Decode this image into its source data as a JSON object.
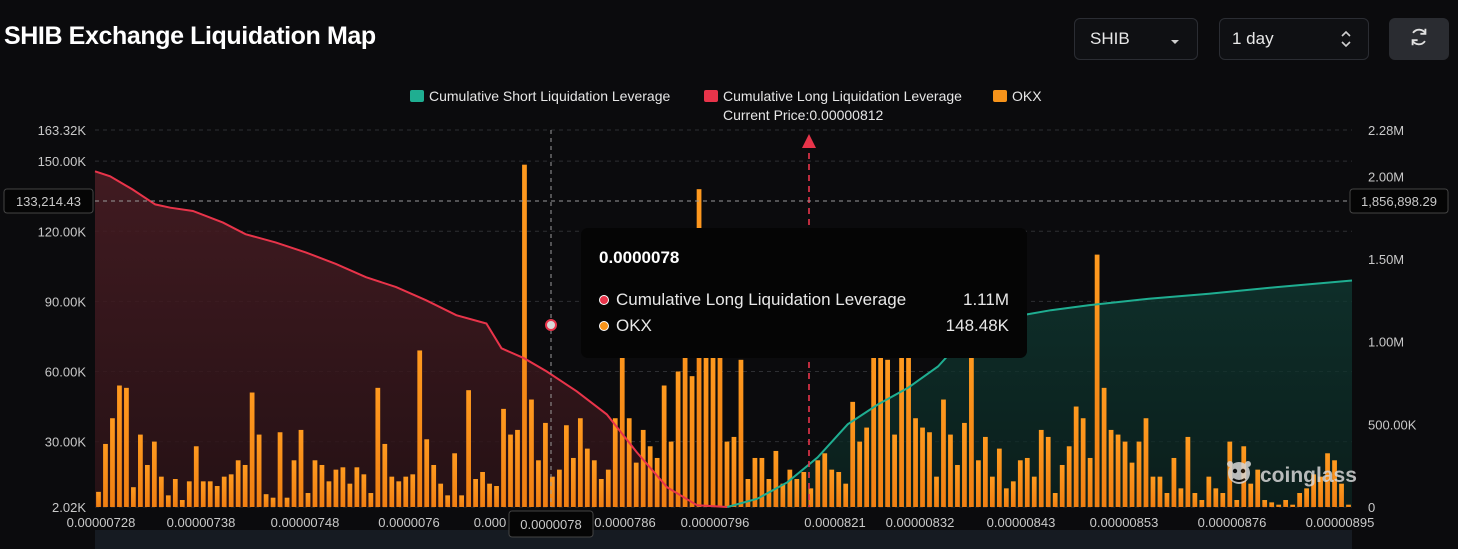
{
  "header": {
    "title": "SHIB Exchange Liquidation Map",
    "symbol": "SHIB",
    "timeframe": "1 day"
  },
  "chart_data": {
    "type": "bar",
    "legend": [
      {
        "name": "Cumulative Short Liquidation Leverage",
        "color": "#1fae91"
      },
      {
        "name": "Cumulative Long Liquidation Leverage",
        "color": "#e8344a"
      },
      {
        "name": "OKX",
        "color": "#f7931a"
      }
    ],
    "current_price_label": "Current Price:0.00000812",
    "current_price": 8.12e-06,
    "left_axis": {
      "ticks": [
        "163.32K",
        "150.00K",
        "120.00K",
        "90.00K",
        "60.00K",
        "30.00K",
        "2.02K"
      ],
      "min": 2020,
      "max": 163320
    },
    "right_axis": {
      "ticks": [
        "2.28M",
        "2.00M",
        "1.50M",
        "1.00M",
        "500.00K",
        "0"
      ],
      "min": 0,
      "max": 2280000
    },
    "x_ticks": [
      "0.00000728",
      "0.00000738",
      "0.00000748",
      "0.0000076",
      "0.000",
      "0.0000786",
      "0.00000796",
      "0.0000821",
      "0.00000832",
      "0.00000843",
      "0.00000853",
      "0.00000876",
      "0.00000895"
    ],
    "crosshair": {
      "left_label": "133,214.43",
      "right_label": "1,856,898.29",
      "x_label": "0.0000078"
    },
    "okx_values": [
      8500,
      29000,
      40000,
      54000,
      53000,
      10500,
      33000,
      20000,
      30000,
      15000,
      7000,
      14000,
      5000,
      13000,
      28000,
      13000,
      13000,
      11000,
      15000,
      16000,
      22000,
      20000,
      51000,
      33000,
      7500,
      6000,
      34000,
      6000,
      22000,
      35000,
      8000,
      22000,
      20000,
      13000,
      18000,
      19000,
      12000,
      19000,
      16000,
      8000,
      53000,
      29000,
      15000,
      13000,
      15000,
      16000,
      69000,
      31000,
      20000,
      12000,
      7000,
      25000,
      7000,
      52000,
      14000,
      17000,
      12000,
      11000,
      44000,
      33000,
      35000,
      148480,
      48000,
      22000,
      38000,
      15000,
      18000,
      37000,
      23000,
      40000,
      27000,
      22000,
      14000,
      18000,
      40000,
      80000,
      40000,
      21000,
      35000,
      28000,
      23000,
      54000,
      30000,
      60000,
      86000,
      58000,
      138000,
      68000,
      68000,
      95000,
      30000,
      32000,
      65000,
      14000,
      23000,
      23000,
      14000,
      26000,
      12000,
      18000,
      14000,
      17000,
      10000,
      22000,
      25000,
      18000,
      17000,
      12000,
      47000,
      30000,
      36000,
      75000,
      69000,
      65000,
      33000,
      66000,
      72000,
      40000,
      36000,
      34000,
      15000,
      48000,
      33000,
      20000,
      38000,
      68000,
      22000,
      32000,
      15000,
      27000,
      10000,
      13000,
      22000,
      23000,
      15000,
      35000,
      32000,
      8000,
      20000,
      28000,
      45000,
      40000,
      23000,
      110000,
      53000,
      35000,
      33000,
      30000,
      21000,
      30000,
      40000,
      15000,
      15000,
      8000,
      23000,
      10000,
      32000,
      8000,
      5000,
      15000,
      10000,
      8000,
      30000,
      5000,
      28000,
      12000,
      18000,
      5000,
      4000,
      3000,
      5000,
      3000,
      8000,
      10000,
      16000,
      15000,
      25000,
      22000,
      12000,
      3000
    ]
  },
  "tooltip": {
    "title": "0.0000078",
    "rows": [
      {
        "label": "Cumulative Long Liquidation Leverage",
        "value": "1.11M",
        "color": "#e8344a"
      },
      {
        "label": "OKX",
        "value": "148.48K",
        "color": "#f7931a"
      }
    ]
  },
  "watermark": "coinglass"
}
